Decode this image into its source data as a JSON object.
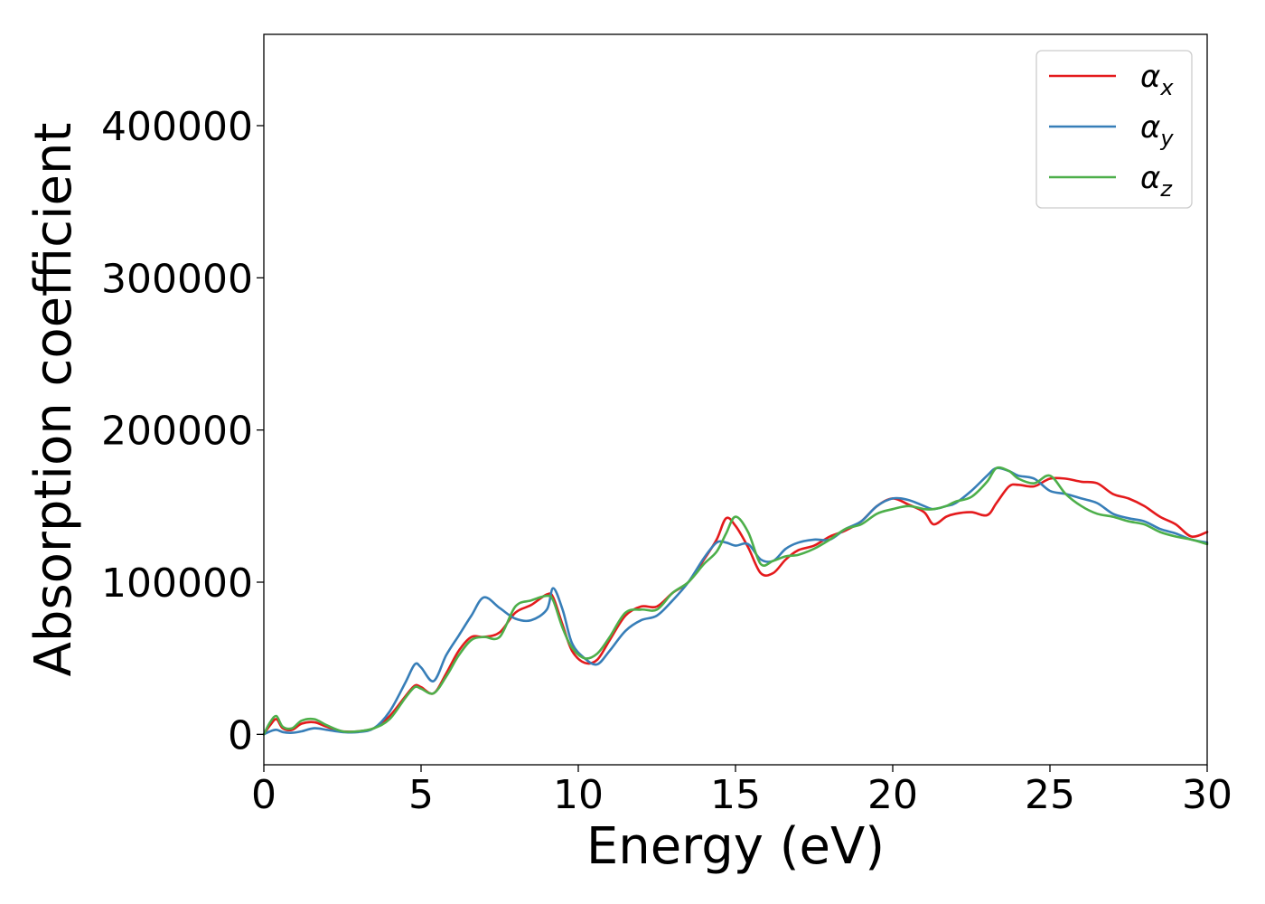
{
  "chart_data": {
    "type": "line",
    "title": "",
    "xlabel": "Energy (eV)",
    "ylabel": "Absorption coefficient",
    "xlim": [
      0,
      30
    ],
    "ylim": [
      -20000,
      460000
    ],
    "xticks": [
      0,
      5,
      10,
      15,
      20,
      25,
      30
    ],
    "yticks": [
      0,
      100000,
      200000,
      300000,
      400000
    ],
    "grid": false,
    "legend_position": "top-right",
    "series": [
      {
        "name": "α",
        "subscript": "x",
        "color": "#e41a1c",
        "x": [
          0,
          0.2,
          0.4,
          0.6,
          0.9,
          1.2,
          1.6,
          2.0,
          2.5,
          3.0,
          3.5,
          4.0,
          4.5,
          4.8,
          5.0,
          5.4,
          5.8,
          6.2,
          6.6,
          7.0,
          7.5,
          8.0,
          8.5,
          9.0,
          9.2,
          9.5,
          9.8,
          10.2,
          10.6,
          11.0,
          11.5,
          12.0,
          12.5,
          13.0,
          13.5,
          14.0,
          14.4,
          14.7,
          15.0,
          15.4,
          15.8,
          16.2,
          16.6,
          17.0,
          17.5,
          18.0,
          18.5,
          19.0,
          19.5,
          20.0,
          20.5,
          21.0,
          21.3,
          21.7,
          22.0,
          22.5,
          23.0,
          23.3,
          23.7,
          24.0,
          24.5,
          25.0,
          25.5,
          26.0,
          26.5,
          27.0,
          27.5,
          28.0,
          28.5,
          29.0,
          29.5,
          30.0
        ],
        "y": [
          0,
          6000,
          10000,
          4000,
          3000,
          7000,
          8000,
          5000,
          2000,
          2000,
          4000,
          12000,
          25000,
          32000,
          31000,
          27000,
          40000,
          55000,
          64000,
          64000,
          67000,
          80000,
          85000,
          92000,
          90000,
          72000,
          55000,
          47000,
          49000,
          62000,
          78000,
          84000,
          84000,
          93000,
          100000,
          115000,
          128000,
          142000,
          137000,
          123000,
          106000,
          106000,
          115000,
          121000,
          124000,
          130000,
          134000,
          140000,
          150000,
          155000,
          151000,
          146000,
          138000,
          143000,
          145000,
          146000,
          144000,
          152000,
          163000,
          164000,
          163000,
          168000,
          168000,
          166000,
          165000,
          158000,
          155000,
          150000,
          143000,
          138000,
          130000,
          133000
        ]
      },
      {
        "name": "α",
        "subscript": "y",
        "color": "#377eb8",
        "x": [
          0,
          0.2,
          0.4,
          0.6,
          0.9,
          1.2,
          1.6,
          2.0,
          2.5,
          3.0,
          3.5,
          4.0,
          4.5,
          4.8,
          5.0,
          5.4,
          5.8,
          6.2,
          6.6,
          7.0,
          7.5,
          8.0,
          8.5,
          9.0,
          9.2,
          9.5,
          9.8,
          10.2,
          10.6,
          11.0,
          11.5,
          12.0,
          12.5,
          13.0,
          13.5,
          14.0,
          14.4,
          14.7,
          15.0,
          15.4,
          15.8,
          16.2,
          16.6,
          17.0,
          17.5,
          18.0,
          18.5,
          19.0,
          19.5,
          20.0,
          20.5,
          21.0,
          21.3,
          21.7,
          22.0,
          22.5,
          23.0,
          23.3,
          23.7,
          24.0,
          24.5,
          25.0,
          25.5,
          26.0,
          26.5,
          27.0,
          27.5,
          28.0,
          28.5,
          29.0,
          29.5,
          30.0
        ],
        "y": [
          0,
          2000,
          3000,
          1500,
          1000,
          2000,
          4000,
          3000,
          1500,
          1500,
          4000,
          15000,
          34000,
          46000,
          44000,
          35000,
          52000,
          65000,
          78000,
          90000,
          83000,
          76000,
          75000,
          82000,
          96000,
          82000,
          60000,
          50000,
          46000,
          55000,
          68000,
          75000,
          78000,
          88000,
          100000,
          116000,
          126000,
          126000,
          124000,
          125000,
          115000,
          114000,
          122000,
          126000,
          128000,
          128000,
          135000,
          140000,
          150000,
          155000,
          154000,
          150000,
          148000,
          150000,
          152000,
          160000,
          170000,
          175000,
          173000,
          170000,
          168000,
          160000,
          158000,
          155000,
          152000,
          145000,
          142000,
          140000,
          135000,
          132000,
          128000,
          126000
        ]
      },
      {
        "name": "α",
        "subscript": "z",
        "color": "#4daf4a",
        "x": [
          0,
          0.2,
          0.4,
          0.6,
          0.9,
          1.2,
          1.6,
          2.0,
          2.5,
          3.0,
          3.5,
          4.0,
          4.5,
          4.8,
          5.0,
          5.4,
          5.8,
          6.2,
          6.6,
          7.0,
          7.5,
          8.0,
          8.5,
          9.0,
          9.2,
          9.5,
          9.8,
          10.2,
          10.6,
          11.0,
          11.5,
          12.0,
          12.5,
          13.0,
          13.5,
          14.0,
          14.4,
          14.7,
          15.0,
          15.4,
          15.8,
          16.2,
          16.6,
          17.0,
          17.5,
          18.0,
          18.5,
          19.0,
          19.5,
          20.0,
          20.5,
          21.0,
          21.3,
          21.7,
          22.0,
          22.5,
          23.0,
          23.3,
          23.7,
          24.0,
          24.5,
          25.0,
          25.5,
          26.0,
          26.5,
          27.0,
          27.5,
          28.0,
          28.5,
          29.0,
          29.5,
          30.0
        ],
        "y": [
          0,
          8000,
          12000,
          5000,
          4000,
          9000,
          10000,
          6000,
          2000,
          2000,
          4000,
          10000,
          24000,
          31000,
          30000,
          27000,
          38000,
          52000,
          62000,
          64000,
          64000,
          84000,
          88000,
          91000,
          88000,
          70000,
          57000,
          50000,
          53000,
          64000,
          80000,
          82000,
          82000,
          93000,
          100000,
          112000,
          120000,
          132000,
          143000,
          133000,
          112000,
          114000,
          117000,
          118000,
          122000,
          128000,
          135000,
          138000,
          145000,
          148000,
          150000,
          148000,
          148000,
          150000,
          153000,
          156000,
          166000,
          175000,
          173000,
          168000,
          165000,
          170000,
          158000,
          150000,
          145000,
          143000,
          140000,
          138000,
          133000,
          130000,
          128000,
          125000
        ]
      }
    ]
  }
}
